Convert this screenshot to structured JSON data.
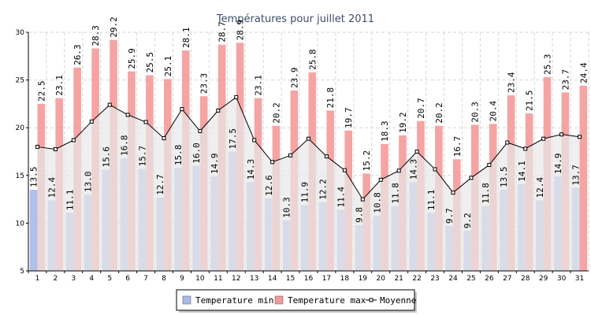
{
  "chart_data": {
    "type": "bar",
    "title": "Températures pour juillet 2011",
    "categories": [
      "1",
      "2",
      "3",
      "4",
      "5",
      "6",
      "7",
      "8",
      "9",
      "10",
      "11",
      "12",
      "13",
      "14",
      "15",
      "16",
      "17",
      "18",
      "19",
      "20",
      "21",
      "22",
      "23",
      "24",
      "25",
      "26",
      "27",
      "28",
      "29",
      "30",
      "31"
    ],
    "series": [
      {
        "name": "Temperature min",
        "type": "bar",
        "color": "#a9b9e8",
        "values": [
          13.5,
          12.4,
          11.1,
          13.0,
          15.6,
          16.8,
          15.7,
          12.7,
          15.8,
          16.0,
          14.9,
          17.5,
          14.3,
          12.6,
          10.3,
          11.9,
          12.2,
          11.4,
          9.8,
          10.8,
          11.8,
          14.3,
          11.1,
          9.7,
          9.2,
          11.8,
          13.5,
          14.1,
          12.4,
          14.9,
          13.7
        ]
      },
      {
        "name": "Temperature max",
        "type": "bar",
        "color": "#f49a9a",
        "values": [
          22.5,
          23.1,
          26.3,
          28.3,
          29.2,
          25.9,
          25.5,
          25.1,
          28.1,
          23.3,
          28.7,
          28.9,
          23.1,
          20.2,
          23.9,
          25.8,
          21.8,
          19.7,
          15.2,
          18.3,
          19.2,
          20.7,
          20.2,
          16.7,
          20.3,
          20.4,
          23.4,
          21.5,
          25.3,
          23.7,
          24.4
        ]
      },
      {
        "name": "Moyenne",
        "type": "line",
        "color": "#000000",
        "values": [
          18.0,
          17.75,
          18.7,
          20.65,
          22.4,
          21.35,
          20.6,
          18.9,
          21.95,
          19.65,
          21.8,
          23.2,
          18.7,
          16.4,
          17.1,
          18.85,
          17.0,
          15.55,
          12.5,
          14.55,
          15.5,
          17.5,
          15.65,
          13.2,
          14.75,
          16.1,
          18.45,
          17.8,
          18.85,
          19.3,
          19.05
        ]
      }
    ],
    "ylim": [
      5,
      30
    ],
    "yticks": [
      5,
      10,
      15,
      20,
      25,
      30
    ],
    "grid": true,
    "legend_position": "bottom"
  }
}
